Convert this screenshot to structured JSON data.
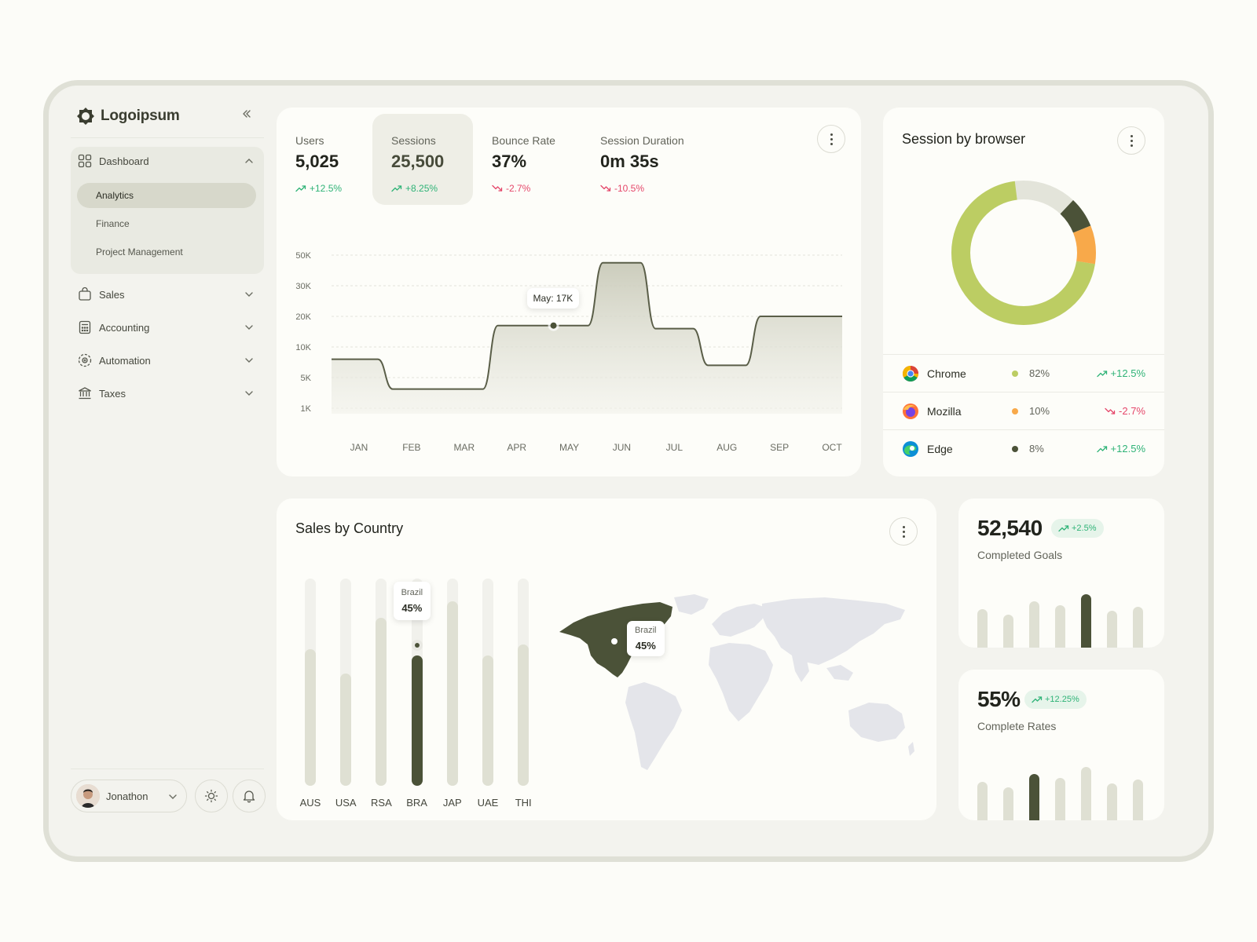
{
  "brand": {
    "name": "Logoipsum"
  },
  "sidebar": {
    "dashboard": {
      "label": "Dashboard",
      "icon": "grid-icon"
    },
    "sub_items": [
      {
        "label": "Analytics",
        "active": true
      },
      {
        "label": "Finance",
        "active": false
      },
      {
        "label": "Project Management",
        "active": false
      }
    ],
    "items": [
      {
        "label": "Sales",
        "icon": "bag-icon"
      },
      {
        "label": "Accounting",
        "icon": "calculator-icon"
      },
      {
        "label": "Automation",
        "icon": "automation-icon"
      },
      {
        "label": "Taxes",
        "icon": "bank-icon"
      }
    ]
  },
  "user": {
    "name": "Jonathon"
  },
  "metrics": [
    {
      "label": "Users",
      "value": "5,025",
      "change": "+12.5%",
      "direction": "up"
    },
    {
      "label": "Sessions",
      "value": "25,500",
      "change": "+8.25%",
      "direction": "up"
    },
    {
      "label": "Bounce Rate",
      "value": "37%",
      "change": "-2.7%",
      "direction": "down"
    },
    {
      "label": "Session Duration",
      "value": "0m 35s",
      "change": "-10.5%",
      "direction": "down"
    }
  ],
  "chart_data": [
    {
      "type": "area",
      "x": [
        "JAN",
        "FEB",
        "MAR",
        "APR",
        "MAY",
        "JUN",
        "JUL",
        "AUG",
        "SEP",
        "OCT"
      ],
      "y_ticks": [
        "50K",
        "30K",
        "20K",
        "10K",
        "5K",
        "1K"
      ],
      "values": [
        8,
        3.5,
        3.5,
        17,
        17,
        45,
        16,
        7,
        20,
        20
      ],
      "tooltip": "May: 17K",
      "highlight_index": 4
    },
    {
      "type": "pie",
      "title": "Session by browser",
      "categories": [
        "Chrome",
        "Mozilla",
        "Edge"
      ],
      "values": [
        82,
        10,
        8
      ],
      "colors": [
        "#bccd63",
        "#f8a94a",
        "#4b5238"
      ]
    },
    {
      "type": "bar",
      "title": "Sales by Country",
      "categories": [
        "AUS",
        "USA",
        "RSA",
        "BRA",
        "JAP",
        "UAE",
        "THI"
      ],
      "values": [
        66,
        54,
        81,
        63,
        89,
        63,
        68
      ],
      "highlight_index": 3,
      "tooltip": {
        "label": "Brazil",
        "value": "45%"
      }
    },
    {
      "type": "bar",
      "values": [
        40,
        34,
        48,
        44,
        55,
        38,
        42
      ],
      "highlight_index": 4
    },
    {
      "type": "bar",
      "values": [
        40,
        34,
        48,
        44,
        55,
        38,
        42
      ],
      "highlight_index": 2
    }
  ],
  "browsers": {
    "title": "Session by browser",
    "rows": [
      {
        "name": "Chrome",
        "pct": "82%",
        "change": "+12.5%",
        "direction": "up",
        "dot": "#bccd63",
        "icon": "chrome-icon"
      },
      {
        "name": "Mozilla",
        "pct": "10%",
        "change": "-2.7%",
        "direction": "down",
        "dot": "#f8a94a",
        "icon": "firefox-icon"
      },
      {
        "name": "Edge",
        "pct": "8%",
        "change": "+12.5%",
        "direction": "up",
        "dot": "#4b5238",
        "icon": "edge-icon"
      }
    ]
  },
  "sales": {
    "title": "Sales by Country",
    "map_tooltip": {
      "label": "Brazil",
      "value": "45%"
    }
  },
  "goals": {
    "value": "52,540",
    "change": "+2.5%",
    "label": "Completed Goals"
  },
  "rates": {
    "value": "55%",
    "change": "+12.25%",
    "label": "Complete Rates"
  },
  "colors": {
    "accent": "#4b5238",
    "up": "#2fb377",
    "down": "#e5476a",
    "surface": "#fdfdf9"
  }
}
